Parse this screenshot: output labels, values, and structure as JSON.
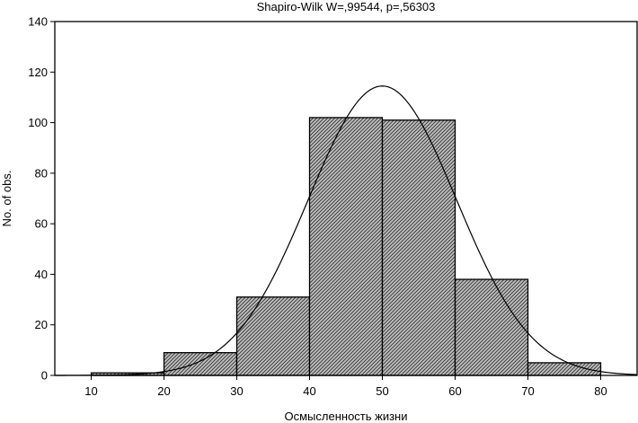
{
  "chart_data": {
    "type": "bar",
    "title": "Shapiro-Wilk W=,99544, p=,56303",
    "xlabel": "Осмысленность жизни",
    "ylabel": "No. of obs.",
    "xlim": [
      5,
      85
    ],
    "ylim": [
      0,
      140
    ],
    "x_ticks": [
      "10",
      "20",
      "30",
      "40",
      "50",
      "60",
      "70",
      "80"
    ],
    "y_ticks": [
      "0",
      "20",
      "40",
      "60",
      "80",
      "100",
      "120",
      "140"
    ],
    "bins": [
      {
        "from": 10,
        "to": 20,
        "value": 1
      },
      {
        "from": 20,
        "to": 30,
        "value": 9
      },
      {
        "from": 30,
        "to": 40,
        "value": 31
      },
      {
        "from": 40,
        "to": 50,
        "value": 102
      },
      {
        "from": 50,
        "to": 60,
        "value": 101
      },
      {
        "from": 60,
        "to": 70,
        "value": 38
      },
      {
        "from": 70,
        "to": 80,
        "value": 5
      }
    ],
    "normal_curve": {
      "mean": 50,
      "sd": 10.2,
      "peak": 114.5
    },
    "bar_fill": "#bdbdbd",
    "hatch_color": "#333333",
    "grid": false
  }
}
